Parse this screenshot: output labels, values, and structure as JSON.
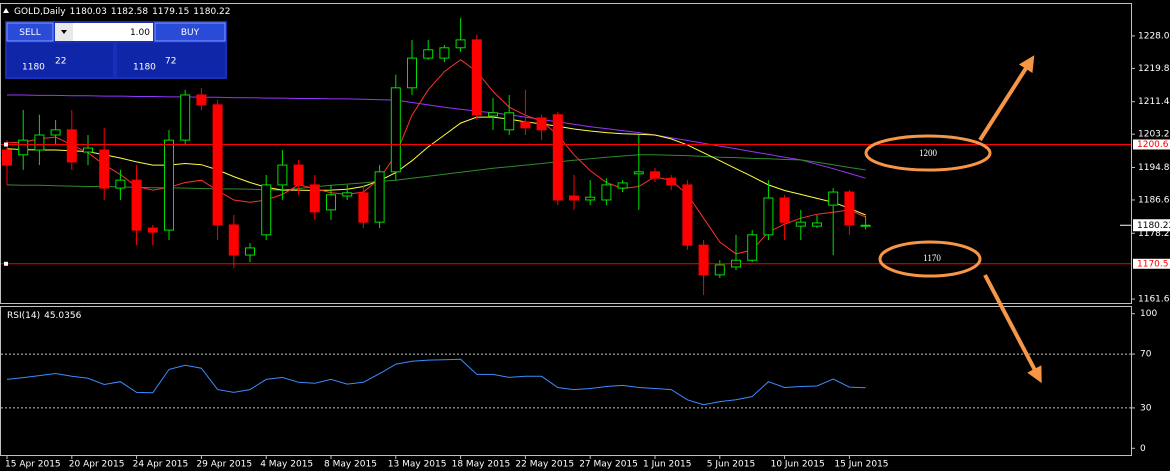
{
  "trade_panel": {
    "sell_label": "SELL",
    "buy_label": "BUY",
    "lot": "1.00",
    "bid_big": "1180",
    "bid_small": "22",
    "ask_big": "1180",
    "ask_small": "72"
  },
  "chart_data": [
    {
      "type": "candlestick",
      "title": "GOLD,Daily",
      "categories": [
        "15 Apr 2015",
        null,
        null,
        null,
        "20 Apr 2015",
        null,
        null,
        null,
        "24 Apr 2015",
        null,
        null,
        null,
        "29 Apr 2015",
        null,
        null,
        null,
        "4 May 2015",
        null,
        null,
        null,
        "8 May 2015",
        null,
        null,
        null,
        "13 May 2015",
        null,
        null,
        null,
        "18 May 2015",
        null,
        null,
        null,
        "22 May 2015",
        null,
        null,
        null,
        "27 May 2015",
        null,
        null,
        null,
        "1 Jun 2015",
        null,
        null,
        null,
        "5 Jun 2015",
        null,
        null,
        null,
        "10 Jun 2015",
        null,
        null,
        null,
        "15 Jun 2015",
        null
      ],
      "open": [
        1199.2,
        1198.0,
        1199.2,
        1203.0,
        1204.3,
        1198.7,
        1199.2,
        1189.6,
        1191.6,
        1179.5,
        1179.0,
        1201.7,
        1213.1,
        1210.6,
        1180.3,
        1172.7,
        1177.8,
        1190.4,
        1195.4,
        1190.4,
        1184.1,
        1187.6,
        1188.4,
        1181.0,
        1193.7,
        1214.9,
        1222.4,
        1222.4,
        1225.0,
        1227.0,
        1207.8,
        1204.3,
        1206.3,
        1207.3,
        1208.1,
        1187.6,
        1186.6,
        1186.6,
        1189.6,
        1193.2,
        1193.7,
        1192.1,
        1190.4,
        1175.2,
        1167.7,
        1169.7,
        1171.4,
        1177.8,
        1187.1,
        1180.0,
        1180.0,
        1185.3,
        1188.6,
        1180.03
      ],
      "high": [
        1201.7,
        1209.3,
        1208.1,
        1206.8,
        1209.3,
        1203.0,
        1204.8,
        1194.2,
        1195.4,
        1180.3,
        1204.3,
        1214.4,
        1214.9,
        1211.8,
        1182.8,
        1175.7,
        1192.9,
        1199.2,
        1196.7,
        1192.9,
        1190.4,
        1190.4,
        1190.4,
        1195.4,
        1218.2,
        1227.0,
        1227.0,
        1225.7,
        1232.5,
        1228.3,
        1212.3,
        1213.1,
        1214.4,
        1208.1,
        1208.8,
        1192.9,
        1191.6,
        1192.1,
        1191.6,
        1203.0,
        1194.7,
        1192.9,
        1191.6,
        1176.5,
        1171.4,
        1177.8,
        1179.0,
        1191.6,
        1187.9,
        1184.1,
        1182.8,
        1189.6,
        1189.1,
        1182.58
      ],
      "low": [
        1190.4,
        1194.2,
        1195.4,
        1200.5,
        1194.2,
        1195.4,
        1186.6,
        1186.6,
        1175.2,
        1175.2,
        1176.5,
        1200.5,
        1209.3,
        1176.5,
        1169.4,
        1170.9,
        1176.5,
        1186.6,
        1187.9,
        1181.5,
        1181.5,
        1186.6,
        1179.5,
        1179.5,
        1191.6,
        1213.1,
        1221.9,
        1221.4,
        1224.0,
        1206.8,
        1204.3,
        1203.0,
        1203.0,
        1201.7,
        1185.3,
        1184.1,
        1185.3,
        1185.3,
        1188.6,
        1184.1,
        1191.1,
        1189.1,
        1174.0,
        1162.6,
        1166.9,
        1168.9,
        1170.9,
        1176.5,
        1176.5,
        1176.5,
        1179.5,
        1172.7,
        1177.8,
        1179.15
      ],
      "close": [
        1195.4,
        1201.7,
        1203.0,
        1204.3,
        1196.2,
        1199.7,
        1189.6,
        1191.6,
        1179.0,
        1178.5,
        1201.7,
        1213.1,
        1210.6,
        1180.3,
        1172.7,
        1174.5,
        1190.4,
        1195.4,
        1190.4,
        1183.6,
        1187.9,
        1188.4,
        1181.0,
        1193.7,
        1214.9,
        1222.4,
        1224.5,
        1225.0,
        1227.0,
        1208.1,
        1208.6,
        1208.6,
        1204.8,
        1204.3,
        1186.6,
        1186.6,
        1187.3,
        1190.4,
        1190.9,
        1193.7,
        1192.1,
        1190.4,
        1175.2,
        1167.7,
        1170.2,
        1171.4,
        1177.8,
        1187.1,
        1181.0,
        1181.0,
        1180.8,
        1188.6,
        1180.3,
        1180.22
      ],
      "up_color": "#00e000",
      "down_color": "#ff0000",
      "lines": [
        {
          "color": "#9933ff",
          "values": [
            1213.1,
            1213.1,
            1213.0,
            1213.0,
            1212.9,
            1212.9,
            1212.8,
            1212.8,
            1212.7,
            1212.7,
            1212.6,
            1212.6,
            1212.5,
            1212.5,
            1212.4,
            1212.4,
            1212.3,
            1212.3,
            1212.2,
            1212.2,
            1212.1,
            1212.1,
            1212.0,
            1211.9,
            1211.8,
            1211.2,
            1210.6,
            1210.0,
            1209.5,
            1209.0,
            1208.6,
            1208.1,
            1207.5,
            1206.9,
            1206.3,
            1205.7,
            1205.1,
            1204.6,
            1204.1,
            1203.6,
            1203.0,
            1202.3,
            1201.6,
            1200.9,
            1200.2,
            1199.5,
            1198.8,
            1198.1,
            1197.4,
            1196.7,
            1195.6,
            1194.5,
            1193.3,
            1192.1
          ]
        },
        {
          "color": "#2e8b2e",
          "values": [
            1190.4,
            1190.3,
            1190.3,
            1190.2,
            1190.1,
            1190.0,
            1190.0,
            1189.9,
            1189.8,
            1189.7,
            1189.7,
            1189.6,
            1189.5,
            1189.4,
            1189.4,
            1189.3,
            1189.2,
            1189.1,
            1189.5,
            1189.9,
            1190.3,
            1190.6,
            1190.9,
            1191.3,
            1191.6,
            1192.1,
            1192.6,
            1193.1,
            1193.6,
            1194.1,
            1194.6,
            1195.0,
            1195.4,
            1195.8,
            1196.2,
            1196.6,
            1197.0,
            1197.4,
            1197.7,
            1198.0,
            1198.0,
            1197.9,
            1197.8,
            1197.6,
            1197.4,
            1197.3,
            1197.1,
            1197.0,
            1196.8,
            1196.7,
            1196.1,
            1195.5,
            1194.8,
            1194.2
          ]
        },
        {
          "color": "#ffff40",
          "values": [
            1199.5,
            1199.3,
            1199.2,
            1199.2,
            1199.0,
            1198.8,
            1198.0,
            1197.2,
            1196.2,
            1195.4,
            1195.4,
            1195.8,
            1195.5,
            1194.2,
            1192.5,
            1191.0,
            1189.8,
            1189.1,
            1189.1,
            1189.0,
            1189.1,
            1189.3,
            1190.0,
            1191.5,
            1193.5,
            1196.5,
            1200.0,
            1203.0,
            1206.0,
            1207.5,
            1207.5,
            1207.0,
            1206.3,
            1205.8,
            1205.2,
            1204.5,
            1204.0,
            1203.6,
            1203.3,
            1203.2,
            1203.0,
            1202.0,
            1200.5,
            1198.5,
            1196.5,
            1194.5,
            1192.5,
            1190.4,
            1189.0,
            1188.0,
            1187.0,
            1186.0,
            1184.5,
            1182.8
          ]
        },
        {
          "color": "#ff3030",
          "values": [
            1201.0,
            1201.2,
            1202.0,
            1202.5,
            1200.5,
            1198.5,
            1195.5,
            1193.0,
            1190.0,
            1189.1,
            1189.8,
            1191.0,
            1191.6,
            1189.0,
            1186.6,
            1186.0,
            1186.6,
            1188.0,
            1190.4,
            1189.5,
            1188.4,
            1188.0,
            1188.6,
            1192.0,
            1198.0,
            1208.0,
            1214.4,
            1219.0,
            1222.0,
            1219.0,
            1214.0,
            1210.0,
            1208.0,
            1206.5,
            1203.0,
            1198.0,
            1194.0,
            1191.0,
            1189.5,
            1190.0,
            1192.5,
            1191.5,
            1188.0,
            1182.0,
            1176.0,
            1173.0,
            1174.0,
            1178.5,
            1180.5,
            1182.0,
            1183.0,
            1183.5,
            1184.1,
            1182.3
          ]
        }
      ],
      "hlines": [
        1200.6,
        1170.5
      ],
      "hline_color": "#ff0000",
      "annotations": [
        "1200",
        "1170"
      ],
      "ylim": [
        1160.6,
        1235.8
      ],
      "yticks": [
        {
          "value": 1228,
          "label": "1228.00"
        },
        {
          "value": 1219.8,
          "label": "1219.80"
        },
        {
          "value": 1211.4,
          "label": "1211.40"
        },
        {
          "value": 1203.2,
          "label": "1203.20"
        },
        {
          "value": 1194.8,
          "label": "1194.80"
        },
        {
          "value": 1186.6,
          "label": "1186.60"
        },
        {
          "value": 1178.2,
          "label": "1178.20"
        },
        {
          "value": 1161.6,
          "label": "1161.60"
        }
      ]
    },
    {
      "type": "line",
      "title": "RSI(14)",
      "series": [
        {
          "color": "#3c8cff",
          "values": [
            51.2,
            52.5,
            54.0,
            55.6,
            53.5,
            52.0,
            47.4,
            49.5,
            41.5,
            41.2,
            58.6,
            61.7,
            59.5,
            43.6,
            41.5,
            43.6,
            51.2,
            52.7,
            49.0,
            48.3,
            51.2,
            47.7,
            49.0,
            55.5,
            62.5,
            64.7,
            65.5,
            65.8,
            66.2,
            54.9,
            54.9,
            52.7,
            53.5,
            53.5,
            45.2,
            43.6,
            44.4,
            45.9,
            46.7,
            45.2,
            44.4,
            43.6,
            36.0,
            32.4,
            34.7,
            36.0,
            38.5,
            49.5,
            45.2,
            45.9,
            46.3,
            51.5,
            45.5,
            45.0356
          ]
        }
      ],
      "levels": [
        70,
        30
      ],
      "ylim": [
        -5,
        105
      ],
      "yticks": [
        100,
        70,
        30,
        0
      ]
    }
  ]
}
